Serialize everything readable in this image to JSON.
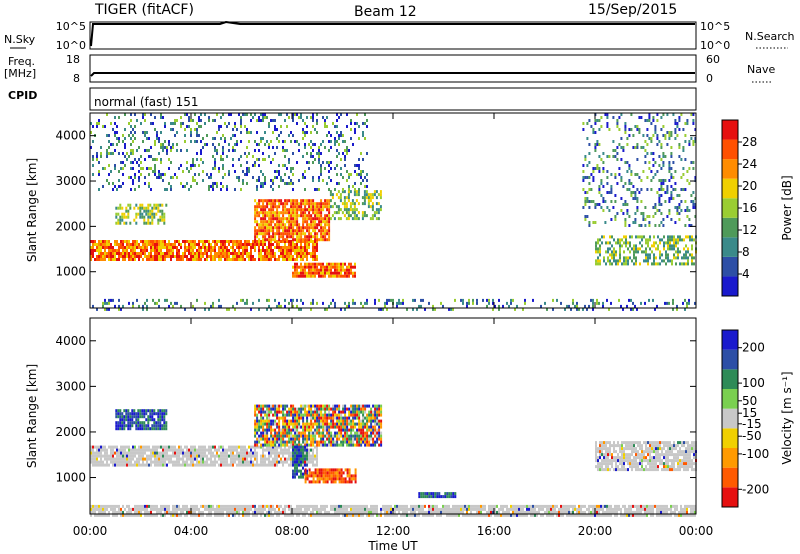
{
  "header": {
    "station": "TIGER (fitACF)",
    "beam": "Beam 12",
    "date": "15/Sep/2015"
  },
  "strips": {
    "nsky": {
      "label": "N.Sky",
      "tick_top": "10^5",
      "tick_bottom": "10^0",
      "right_label": "N.Search",
      "right_tick_top": "10^5",
      "right_tick_bottom": "10^0"
    },
    "freq": {
      "label_line1": "Freq.",
      "label_line2": "[MHz]",
      "tick_top": "18",
      "tick_bottom": "8",
      "right_label": "Nave",
      "right_tick_top": "60",
      "right_tick_bottom": "0"
    },
    "cpid": {
      "label": "CPID",
      "text": "normal (fast) 151"
    }
  },
  "colors": {
    "power": [
      "#1a1acd",
      "#2d4fa6",
      "#3a8a8a",
      "#4f9a5a",
      "#9acd32",
      "#f0d000",
      "#ff8c00",
      "#ff5000",
      "#e61010"
    ],
    "velocity": [
      "#e61010",
      "#ff5a00",
      "#ff9a00",
      "#f0d000",
      "#c8c8c8",
      "#7ad050",
      "#2e8b57",
      "#2d4fa6",
      "#1a1acd"
    ]
  },
  "chart_data": [
    {
      "type": "heatmap",
      "name": "power",
      "ylabel": "Slant Range [km]",
      "xlabel": "Time UT",
      "x_ticks": [
        "00:00",
        "04:00",
        "08:00",
        "12:00",
        "16:00",
        "20:00",
        "00:00"
      ],
      "y_ticks": [
        1000,
        2000,
        3000,
        4000
      ],
      "ylim": [
        200,
        4500
      ],
      "xlim_hours": [
        0,
        24
      ],
      "colorbar": {
        "label": "Power [dB]",
        "ticks": [
          4,
          8,
          12,
          16,
          20,
          24,
          28
        ],
        "range": [
          0,
          32
        ]
      },
      "echo_regions": [
        {
          "t": [
            0.0,
            9.0
          ],
          "r": [
            1250,
            1700
          ],
          "level": "strong"
        },
        {
          "t": [
            6.5,
            9.5
          ],
          "r": [
            1700,
            2600
          ],
          "level": "strong"
        },
        {
          "t": [
            8.0,
            10.5
          ],
          "r": [
            900,
            1200
          ],
          "level": "strong"
        },
        {
          "t": [
            1.0,
            3.0
          ],
          "r": [
            2100,
            2500
          ],
          "level": "medium"
        },
        {
          "t": [
            9.5,
            11.5
          ],
          "r": [
            2200,
            2800
          ],
          "level": "medium"
        },
        {
          "t": [
            0.0,
            11.0
          ],
          "r": [
            2800,
            4500
          ],
          "level": "weak"
        },
        {
          "t": [
            20.0,
            24.0
          ],
          "r": [
            1200,
            1800
          ],
          "level": "medium"
        },
        {
          "t": [
            19.5,
            24.0
          ],
          "r": [
            2000,
            4500
          ],
          "level": "weak"
        },
        {
          "t": [
            0.0,
            24.0
          ],
          "r": [
            200,
            400
          ],
          "level": "weak"
        }
      ]
    },
    {
      "type": "heatmap",
      "name": "velocity",
      "ylabel": "Slant Range [km]",
      "xlabel": "Time UT",
      "x_ticks": [
        "00:00",
        "04:00",
        "08:00",
        "12:00",
        "16:00",
        "20:00",
        "00:00"
      ],
      "y_ticks": [
        1000,
        2000,
        3000,
        4000
      ],
      "ylim": [
        200,
        4500
      ],
      "xlim_hours": [
        0,
        24
      ],
      "colorbar": {
        "label": "Velocity [m s⁻¹]",
        "ticks": [
          -200,
          -100,
          -50,
          -15,
          15,
          50,
          100,
          200
        ],
        "range": [
          -250,
          250
        ]
      },
      "echo_regions": [
        {
          "t": [
            0.0,
            9.0
          ],
          "r": [
            1250,
            1700
          ],
          "level": "ground"
        },
        {
          "t": [
            6.5,
            11.5
          ],
          "r": [
            1700,
            2600
          ],
          "level": "mixed"
        },
        {
          "t": [
            8.0,
            8.6
          ],
          "r": [
            1000,
            1700
          ],
          "level": "positive"
        },
        {
          "t": [
            8.5,
            10.5
          ],
          "r": [
            900,
            1200
          ],
          "level": "negative"
        },
        {
          "t": [
            1.0,
            3.0
          ],
          "r": [
            2100,
            2500
          ],
          "level": "positive"
        },
        {
          "t": [
            13.0,
            14.5
          ],
          "r": [
            600,
            680
          ],
          "level": "positive"
        },
        {
          "t": [
            20.0,
            24.0
          ],
          "r": [
            1200,
            1800
          ],
          "level": "ground"
        },
        {
          "t": [
            0.0,
            24.0
          ],
          "r": [
            200,
            400
          ],
          "level": "ground"
        }
      ]
    }
  ]
}
